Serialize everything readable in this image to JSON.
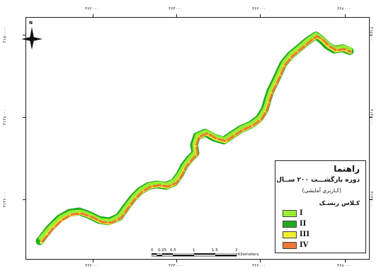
{
  "axes": {
    "x_ticks": [
      "۳۶۲۰۰۰",
      "۳۶۴۰۰۰",
      "۳۶۶۰۰۰",
      "۳۶۸۰۰۰"
    ],
    "y_ticks": [
      "۴۱۵۰۰۰۰",
      "۴۱۴۸۰۰۰",
      "۴۱۴۶۰۰۰"
    ]
  },
  "legend": {
    "title": "راهنما",
    "subtitle": "دوره بازگشـــت ۲۰۰ ســال",
    "note": "(کـاربری آمایشی)",
    "class_heading": "کـلاس ریسـک",
    "items": [
      {
        "label": "I",
        "color": "#99ee33"
      },
      {
        "label": "II",
        "color": "#22aa22"
      },
      {
        "label": "III",
        "color": "#eeee33"
      },
      {
        "label": "IV",
        "color": "#ee7733"
      }
    ]
  },
  "scale": {
    "labels": [
      "0",
      "0.25",
      "0.5",
      "1",
      "1.5",
      "2"
    ],
    "unit": "Kilometers"
  },
  "north_arrow": {
    "label": "N",
    "icon": "north-arrow-icon"
  }
}
